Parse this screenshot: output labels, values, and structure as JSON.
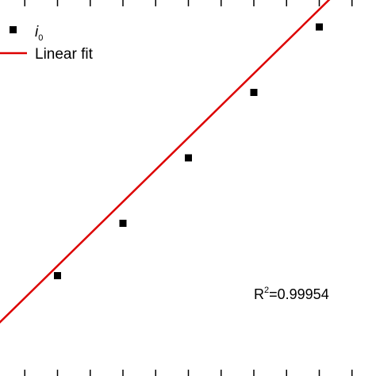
{
  "chart_data": {
    "type": "scatter",
    "title": "",
    "xlabel": "",
    "ylabel": "",
    "grid": false,
    "legend_position": "top-left",
    "x": [
      1,
      2,
      3,
      4,
      5
    ],
    "series": [
      {
        "name": "i0",
        "name_base": "i",
        "name_sub": "0",
        "kind": "scatter",
        "marker": "square",
        "color": "#000000",
        "x": [
          1,
          2,
          3,
          4,
          5
        ],
        "y": [
          1.0,
          1.8,
          2.8,
          3.8,
          4.8
        ]
      },
      {
        "name": "Linear fit",
        "kind": "line",
        "color": "#dd0000",
        "x": [
          0,
          5.9
        ],
        "y": [
          0.17,
          5.95
        ]
      }
    ],
    "annotations": [
      {
        "text_base": "R",
        "text_sup": "2",
        "text_rest": "=0.99954"
      }
    ]
  }
}
